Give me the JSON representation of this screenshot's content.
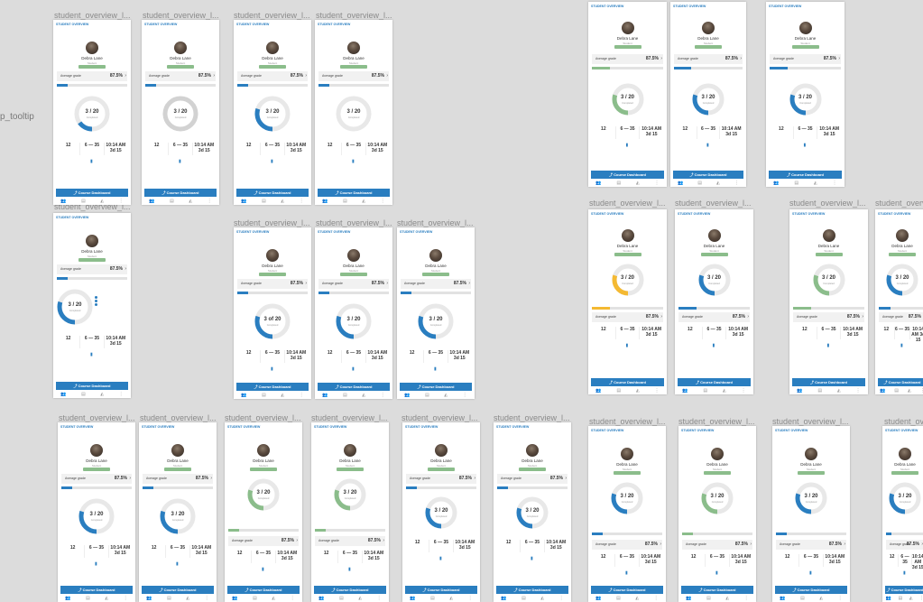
{
  "canvas": {
    "background": "#dcdcdc",
    "accent": "#2a7ec0",
    "green": "#8bbd8b",
    "yellow": "#f4b932"
  },
  "side_label": "p_tooltip",
  "side_text": "",
  "frame_title": "student_overview_l...",
  "header": "STUDENT OVERVIEW",
  "student": {
    "name": "Debra Lane",
    "sub": "Student",
    "tag": ""
  },
  "grade": {
    "label": "Average grade",
    "value": "87.5%",
    "chevron": "›"
  },
  "progress_label": "",
  "donut": {
    "value": "3 / 20",
    "value_alt": "3 of 20",
    "sub": "Completed",
    "fraction": 0.15
  },
  "stats": {
    "a": "12",
    "b": "6 — 35",
    "c": "10:14 AM\n3d 15",
    "c_short": "10:14 AM 3d 15"
  },
  "button": {
    "label": "⤴ Course Dashboard",
    "icon": "book-icon"
  },
  "tabs": [
    "👥",
    "▤",
    "◭",
    "⋮"
  ],
  "frames": [
    {
      "title": true,
      "grade_first": true,
      "bar": 0.15,
      "bar_color": "blue",
      "donut_frac": 0.15,
      "ring": "#e6e6e6"
    },
    {
      "title": true,
      "grade_first": true,
      "bar": 0.15,
      "bar_color": "blue",
      "donut_frac": 0.0,
      "ring": "#d0d0d0"
    },
    {
      "title": true,
      "grade_first": true,
      "bar": 0.15,
      "bar_color": "blue",
      "donut_frac": 0.3,
      "ring": "#e6e6e6"
    },
    {
      "title": true,
      "grade_first": true,
      "bar": 0.15,
      "bar_color": "blue",
      "donut_frac": 0.0,
      "ring": "#e6e6e6"
    },
    {
      "title": false,
      "grade_first": true,
      "bar": 0.15,
      "bar_color": "blue",
      "donut_frac": 0.3,
      "ring": "#e6e6e6"
    },
    {
      "title": false,
      "grade_first": true,
      "bar": 0.15,
      "bar_color": "blue",
      "donut_frac": 0.3,
      "ring": "#e6e6e6"
    },
    {
      "title": false,
      "grade_first": true,
      "bar": 0.15,
      "bar_color": "blue",
      "donut_frac": 0.3,
      "ring": "#e6e6e6"
    }
  ]
}
